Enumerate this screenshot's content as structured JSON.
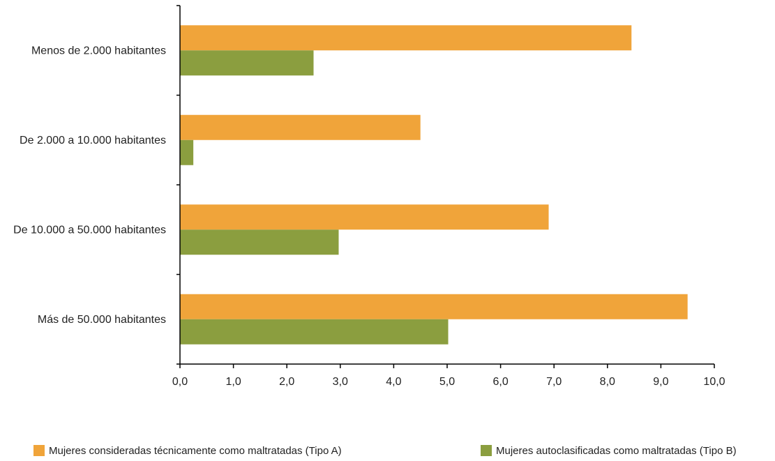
{
  "chart_data": {
    "type": "bar",
    "orientation": "horizontal",
    "categories": [
      "Menos de 2.000 habitantes",
      "De 2.000 a 10.000 habitantes",
      "De 10.000 a 50.000 habitantes",
      "Más de 50.000 habitantes"
    ],
    "series": [
      {
        "name": "Mujeres consideradas técnicamente como maltratadas (Tipo A)",
        "color": "#f0a43a",
        "values": [
          8.45,
          4.5,
          6.9,
          9.5
        ]
      },
      {
        "name": "Mujeres autoclasificadas como maltratadas (Tipo B)",
        "color": "#8b9e3f",
        "values": [
          2.5,
          0.25,
          2.97,
          5.02
        ]
      }
    ],
    "xlim": [
      0,
      10
    ],
    "xticks": [
      "0,0",
      "1,0",
      "2,0",
      "3,0",
      "4,0",
      "5,0",
      "6,0",
      "7,0",
      "8,0",
      "9,0",
      "10,0"
    ],
    "grid": false,
    "legend_position": "bottom"
  }
}
